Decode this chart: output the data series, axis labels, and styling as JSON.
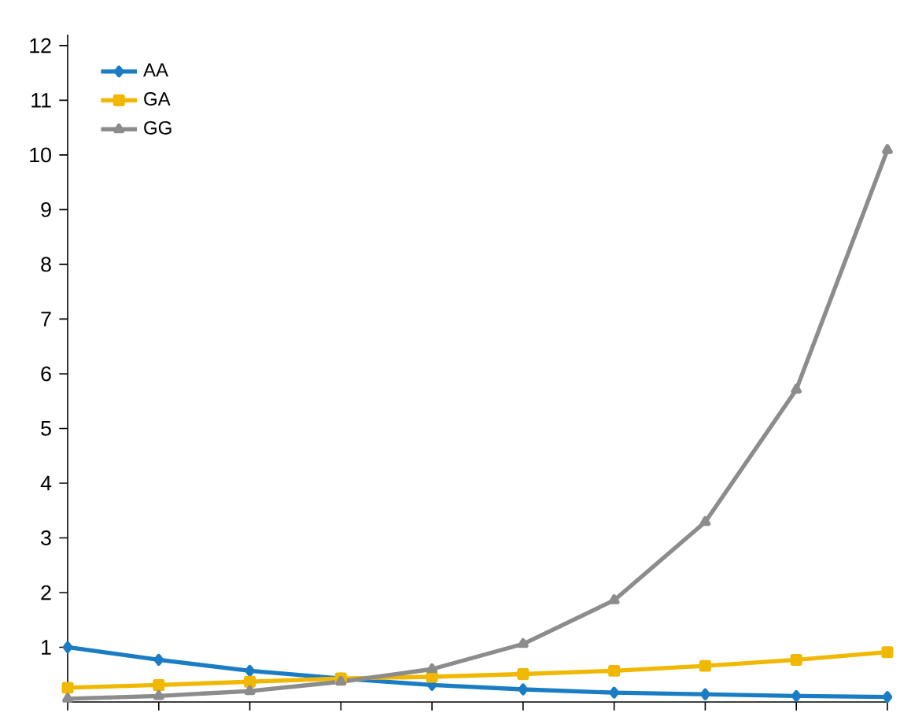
{
  "chart_data": {
    "type": "line",
    "categories": [
      null,
      null,
      null,
      null,
      null,
      null,
      null,
      null,
      null,
      null
    ],
    "series": [
      {
        "name": "AA",
        "color": "#1a7dc4",
        "marker": "diamond",
        "values": [
          1.0,
          0.77,
          0.57,
          0.43,
          0.31,
          0.23,
          0.17,
          0.14,
          0.11,
          0.09
        ]
      },
      {
        "name": "GA",
        "color": "#f0b800",
        "marker": "square",
        "values": [
          0.26,
          0.31,
          0.37,
          0.43,
          0.46,
          0.51,
          0.57,
          0.66,
          0.77,
          0.91
        ]
      },
      {
        "name": "GG",
        "color": "#8c8c8c",
        "marker": "triangle",
        "values": [
          0.06,
          0.11,
          0.2,
          0.37,
          0.6,
          1.06,
          1.86,
          3.29,
          5.71,
          10.09
        ]
      }
    ],
    "ylim": [
      0,
      12.2
    ],
    "yticks": [
      1,
      2,
      3,
      4,
      5,
      6,
      7,
      8,
      9,
      10,
      11,
      12
    ],
    "grid": false,
    "legend": "top left",
    "tick_labels": "y",
    "line_style": "solid"
  }
}
